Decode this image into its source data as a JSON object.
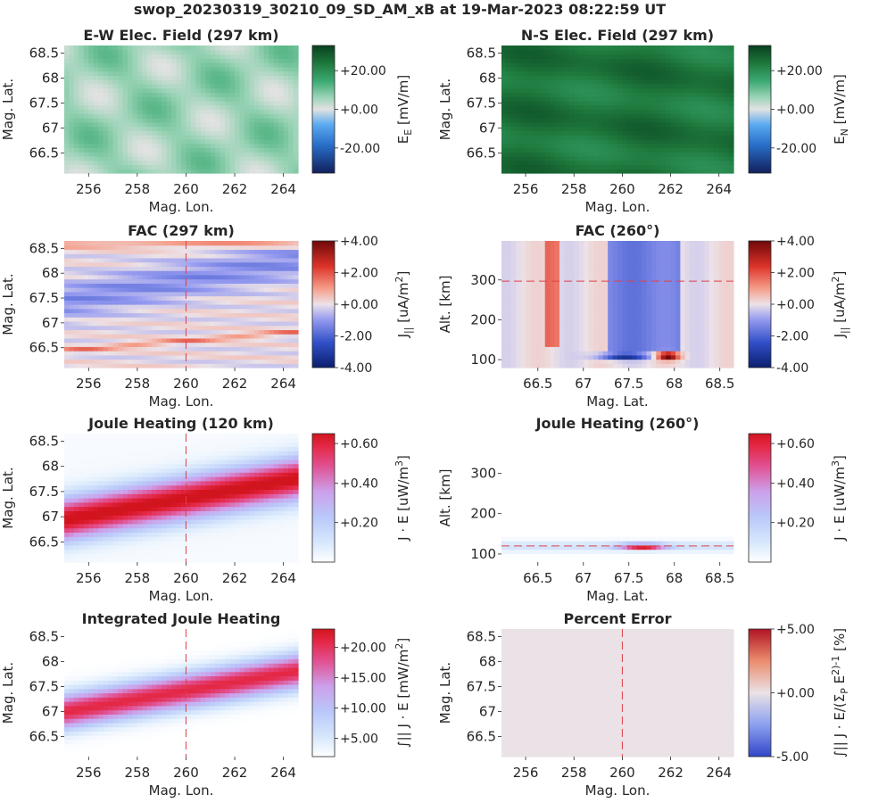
{
  "figure": {
    "suptitle": "swop_20230319_30210_09_SD_AM_xB at 19-Mar-2023 08:22:59 UT"
  },
  "chart_data": [
    {
      "type": "heatmap",
      "id": "ew_field",
      "title": "E-W Elec. Field (297 km)",
      "xlabel": "Mag. Lon.",
      "ylabel": "Mag. Lat.",
      "xlim": [
        255,
        264.6
      ],
      "ylim": [
        66.1,
        68.65
      ],
      "xticks": [
        256,
        258,
        260,
        262,
        264
      ],
      "xtick_labels": [
        "256",
        "258",
        "260",
        "262",
        "264"
      ],
      "yticks": [
        66.5,
        67,
        67.5,
        68,
        68.5
      ],
      "ytick_labels": [
        "66.5",
        "67",
        "67.5",
        "68",
        "68.5"
      ],
      "colormap": "green_diverging",
      "clim": [
        -33,
        33
      ],
      "colorbar_ticks": [
        20,
        0,
        -20
      ],
      "colorbar_tick_labels": [
        "+20.00",
        "+0.00",
        "-20.00"
      ],
      "colorbar_label": "E_E [mV/m]",
      "field": {
        "kind": "ew",
        "base": 6
      },
      "ref_line": null
    },
    {
      "type": "heatmap",
      "id": "ns_field",
      "title": "N-S Elec. Field (297 km)",
      "xlabel": "Mag. Lon.",
      "ylabel": "Mag. Lat.",
      "xlim": [
        255,
        264.6
      ],
      "ylim": [
        66.1,
        68.65
      ],
      "xticks": [
        256,
        258,
        260,
        262,
        264
      ],
      "xtick_labels": [
        "256",
        "258",
        "260",
        "262",
        "264"
      ],
      "yticks": [
        66.5,
        67,
        67.5,
        68,
        68.5
      ],
      "ytick_labels": [
        "66.5",
        "67",
        "67.5",
        "68",
        "68.5"
      ],
      "colormap": "green_diverging",
      "clim": [
        -33,
        33
      ],
      "colorbar_ticks": [
        20,
        0,
        -20
      ],
      "colorbar_tick_labels": [
        "+20.00",
        "+0.00",
        "-20.00"
      ],
      "colorbar_label": "E_N [mV/m]",
      "field": {
        "kind": "ns",
        "base": 24
      },
      "ref_line": null
    },
    {
      "type": "heatmap",
      "id": "fac_map",
      "title": "FAC (297 km)",
      "xlabel": "Mag. Lon.",
      "ylabel": "Mag. Lat.",
      "xlim": [
        255,
        264.6
      ],
      "ylim": [
        66.1,
        68.65
      ],
      "xticks": [
        256,
        258,
        260,
        262,
        264
      ],
      "xtick_labels": [
        "256",
        "258",
        "260",
        "262",
        "264"
      ],
      "yticks": [
        66.5,
        67,
        67.5,
        68,
        68.5
      ],
      "ytick_labels": [
        "66.5",
        "67",
        "67.5",
        "68",
        "68.5"
      ],
      "colormap": "red_blue_diverging",
      "clim": [
        -4,
        4
      ],
      "colorbar_ticks": [
        4,
        2,
        0,
        -2,
        -4
      ],
      "colorbar_tick_labels": [
        "+4.00",
        "+2.00",
        "+0.00",
        "-2.00",
        "-4.00"
      ],
      "colorbar_label": "J_|| [uA/m^2]",
      "field": {
        "kind": "fac_map"
      },
      "ref_line": {
        "orientation": "vertical",
        "value": 260
      }
    },
    {
      "type": "heatmap",
      "id": "fac_slice",
      "title": "FAC (260°)",
      "xlabel": "Mag. Lat.",
      "ylabel": "Alt. [km]",
      "xlim": [
        66.1,
        68.65
      ],
      "ylim": [
        80,
        398
      ],
      "xticks": [
        66.5,
        67,
        67.5,
        68,
        68.5
      ],
      "xtick_labels": [
        "66.5",
        "67",
        "67.5",
        "68",
        "68.5"
      ],
      "yticks": [
        100,
        200,
        300
      ],
      "ytick_labels": [
        "100",
        "200",
        "300"
      ],
      "colormap": "red_blue_diverging",
      "clim": [
        -4,
        4
      ],
      "colorbar_ticks": [
        4,
        2,
        0,
        -2,
        -4
      ],
      "colorbar_tick_labels": [
        "+4.00",
        "+2.00",
        "+0.00",
        "-2.00",
        "-4.00"
      ],
      "colorbar_label": "J_|| [uA/m^2]",
      "field": {
        "kind": "fac_slice"
      },
      "ref_line": {
        "orientation": "horizontal",
        "value": 297
      }
    },
    {
      "type": "heatmap",
      "id": "joule_map",
      "title": "Joule Heating (120 km)",
      "xlabel": "Mag. Lon.",
      "ylabel": "Mag. Lat.",
      "xlim": [
        255,
        264.6
      ],
      "ylim": [
        66.1,
        68.65
      ],
      "xticks": [
        256,
        258,
        260,
        262,
        264
      ],
      "xtick_labels": [
        "256",
        "258",
        "260",
        "262",
        "264"
      ],
      "yticks": [
        66.5,
        67,
        67.5,
        68,
        68.5
      ],
      "ytick_labels": [
        "66.5",
        "67",
        "67.5",
        "68",
        "68.5"
      ],
      "colormap": "joule",
      "clim": [
        0,
        0.65
      ],
      "colorbar_ticks": [
        0.6,
        0.4,
        0.2
      ],
      "colorbar_tick_labels": [
        "+0.60",
        "+0.40",
        "+0.20"
      ],
      "colorbar_label": "J · E [uW/m^3]",
      "field": {
        "kind": "joule_map"
      },
      "ref_line": {
        "orientation": "vertical",
        "value": 260
      }
    },
    {
      "type": "heatmap",
      "id": "joule_slice",
      "title": "Joule Heating (260°)",
      "xlabel": "Mag. Lat.",
      "ylabel": "Alt. [km]",
      "xlim": [
        66.1,
        68.65
      ],
      "ylim": [
        80,
        398
      ],
      "xticks": [
        66.5,
        67,
        67.5,
        68,
        68.5
      ],
      "xtick_labels": [
        "66.5",
        "67",
        "67.5",
        "68",
        "68.5"
      ],
      "yticks": [
        100,
        200,
        300
      ],
      "ytick_labels": [
        "100",
        "200",
        "300"
      ],
      "colormap": "joule",
      "clim": [
        0,
        0.65
      ],
      "colorbar_ticks": [
        0.6,
        0.4,
        0.2
      ],
      "colorbar_tick_labels": [
        "+0.60",
        "+0.40",
        "+0.20"
      ],
      "colorbar_label": "J · E [uW/m^3]",
      "field": {
        "kind": "joule_slice"
      },
      "ref_line": {
        "orientation": "horizontal",
        "value": 120
      }
    },
    {
      "type": "heatmap",
      "id": "int_joule",
      "title": "Integrated Joule Heating",
      "xlabel": "Mag. Lon.",
      "ylabel": "Mag. Lat.",
      "xlim": [
        255,
        264.6
      ],
      "ylim": [
        66.1,
        68.65
      ],
      "xticks": [
        256,
        258,
        260,
        262,
        264
      ],
      "xtick_labels": [
        "256",
        "258",
        "260",
        "262",
        "264"
      ],
      "yticks": [
        66.5,
        67,
        67.5,
        68,
        68.5
      ],
      "ytick_labels": [
        "66.5",
        "67",
        "67.5",
        "68",
        "68.5"
      ],
      "colormap": "joule",
      "clim": [
        2,
        23
      ],
      "colorbar_ticks": [
        20,
        15,
        10,
        5
      ],
      "colorbar_tick_labels": [
        "+20.00",
        "+15.00",
        "+10.00",
        "+5.00"
      ],
      "colorbar_label": "∫|| J · E [mW/m^2]",
      "field": {
        "kind": "int_joule"
      },
      "ref_line": {
        "orientation": "vertical",
        "value": 260
      }
    },
    {
      "type": "heatmap",
      "id": "pct_error",
      "title": "Percent Error",
      "xlabel": "Mag. Lon.",
      "ylabel": "Mag. Lat.",
      "xlim": [
        255,
        264.6
      ],
      "ylim": [
        66.1,
        68.65
      ],
      "xticks": [
        256,
        258,
        260,
        262,
        264
      ],
      "xtick_labels": [
        "256",
        "258",
        "260",
        "262",
        "264"
      ],
      "yticks": [
        66.5,
        67,
        67.5,
        68,
        68.5
      ],
      "ytick_labels": [
        "66.5",
        "67",
        "67.5",
        "68",
        "68.5"
      ],
      "colormap": "coolwarm",
      "clim": [
        -5,
        5
      ],
      "colorbar_ticks": [
        5,
        0,
        -5
      ],
      "colorbar_tick_labels": [
        "+5.00",
        "+0.00",
        "-5.00"
      ],
      "colorbar_label": "∫|| J · E/(Σ_P E^2)-1 [%]",
      "field": {
        "kind": "uniform",
        "value": 0
      },
      "ref_line": {
        "orientation": "vertical",
        "value": 260
      }
    }
  ]
}
